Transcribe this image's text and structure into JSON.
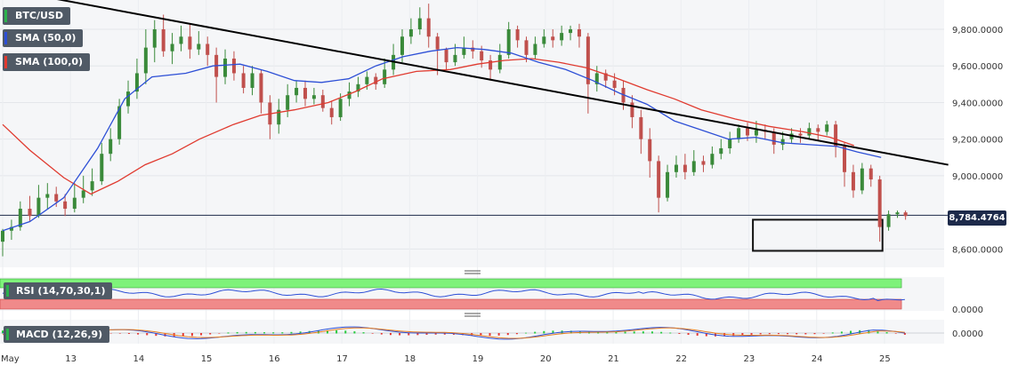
{
  "chart_data": {
    "type": "candlestick",
    "symbol": "BTC/USD",
    "indicators": {
      "sma_fast": {
        "label": "SMA (50,0)",
        "color": "#2d4fd6"
      },
      "sma_slow": {
        "label": "SMA (100,0)",
        "color": "#e03a2f"
      },
      "rsi": {
        "label": "RSI (14,70,30,1)",
        "overbought_color": "#7ef27a",
        "oversold_color": "#f08a8a",
        "line_color": "#2d4fd6"
      },
      "macd": {
        "label": "MACD (12,26,9)",
        "zero_label": "0.0000"
      }
    },
    "current_price": "8,784.4764",
    "rsi_axis_label": "0.0000",
    "yaxis": {
      "ticks": [
        {
          "value": 9800,
          "label": "9,800.0000"
        },
        {
          "value": 9600,
          "label": "9,600.0000"
        },
        {
          "value": 9400,
          "label": "9,400.0000"
        },
        {
          "value": 9200,
          "label": "9,200.0000"
        },
        {
          "value": 9000,
          "label": "9,000.0000"
        },
        {
          "value": 8600,
          "label": "8,600.0000"
        }
      ],
      "ylim": [
        8500,
        9960
      ]
    },
    "xaxis": {
      "ticks": [
        "May",
        "13",
        "14",
        "15",
        "16",
        "17",
        "18",
        "19",
        "20",
        "21",
        "22",
        "23",
        "24",
        "25"
      ]
    },
    "trendline": {
      "start": [
        0,
        10020
      ],
      "end": [
        13.94,
        9060
      ]
    },
    "support_zone": {
      "x_start": 11.06,
      "x_end": 12.97,
      "y_low": 8590,
      "y_high": 8760
    },
    "sma_fast_series": [
      [
        0,
        8700
      ],
      [
        0.4,
        8750
      ],
      [
        0.9,
        8880
      ],
      [
        1.4,
        9150
      ],
      [
        1.8,
        9420
      ],
      [
        2.2,
        9540
      ],
      [
        2.7,
        9560
      ],
      [
        3.1,
        9600
      ],
      [
        3.5,
        9610
      ],
      [
        3.9,
        9570
      ],
      [
        4.3,
        9520
      ],
      [
        4.7,
        9510
      ],
      [
        5.1,
        9530
      ],
      [
        5.5,
        9600
      ],
      [
        5.9,
        9650
      ],
      [
        6.3,
        9680
      ],
      [
        6.7,
        9700
      ],
      [
        7.1,
        9690
      ],
      [
        7.5,
        9670
      ],
      [
        7.9,
        9620
      ],
      [
        8.3,
        9580
      ],
      [
        8.7,
        9520
      ],
      [
        9.1,
        9450
      ],
      [
        9.5,
        9390
      ],
      [
        9.9,
        9300
      ],
      [
        10.3,
        9250
      ],
      [
        10.7,
        9200
      ],
      [
        11.1,
        9210
      ],
      [
        11.5,
        9180
      ],
      [
        11.9,
        9170
      ],
      [
        12.3,
        9160
      ],
      [
        12.6,
        9130
      ],
      [
        12.95,
        9100
      ]
    ],
    "sma_slow_series": [
      [
        0,
        9280
      ],
      [
        0.4,
        9140
      ],
      [
        0.9,
        8990
      ],
      [
        1.3,
        8900
      ],
      [
        1.7,
        8970
      ],
      [
        2.1,
        9060
      ],
      [
        2.5,
        9120
      ],
      [
        2.9,
        9200
      ],
      [
        3.4,
        9280
      ],
      [
        3.8,
        9330
      ],
      [
        4.3,
        9360
      ],
      [
        4.8,
        9400
      ],
      [
        5.2,
        9460
      ],
      [
        5.6,
        9530
      ],
      [
        6.1,
        9570
      ],
      [
        6.6,
        9580
      ],
      [
        7.0,
        9610
      ],
      [
        7.4,
        9630
      ],
      [
        7.8,
        9640
      ],
      [
        8.2,
        9620
      ],
      [
        8.6,
        9590
      ],
      [
        9.0,
        9540
      ],
      [
        9.5,
        9470
      ],
      [
        9.9,
        9420
      ],
      [
        10.3,
        9360
      ],
      [
        10.8,
        9310
      ],
      [
        11.3,
        9270
      ],
      [
        11.8,
        9240
      ],
      [
        12.2,
        9210
      ],
      [
        12.55,
        9165
      ]
    ],
    "candles": [
      [
        0.0,
        8640,
        8700,
        8560,
        8710
      ],
      [
        0.13,
        8700,
        8720,
        8650,
        8760
      ],
      [
        0.26,
        8720,
        8820,
        8700,
        8860
      ],
      [
        0.4,
        8820,
        8780,
        8750,
        8890
      ],
      [
        0.53,
        8780,
        8880,
        8770,
        8950
      ],
      [
        0.66,
        8880,
        8900,
        8820,
        8960
      ],
      [
        0.79,
        8900,
        8860,
        8830,
        8940
      ],
      [
        0.92,
        8860,
        8820,
        8780,
        8900
      ],
      [
        1.06,
        8820,
        8880,
        8800,
        8960
      ],
      [
        1.19,
        8880,
        8920,
        8850,
        9000
      ],
      [
        1.32,
        8920,
        8970,
        8890,
        9040
      ],
      [
        1.46,
        8970,
        9120,
        8950,
        9180
      ],
      [
        1.59,
        9120,
        9200,
        9080,
        9260
      ],
      [
        1.72,
        9200,
        9380,
        9170,
        9420
      ],
      [
        1.85,
        9380,
        9460,
        9340,
        9520
      ],
      [
        1.98,
        9460,
        9560,
        9420,
        9640
      ],
      [
        2.11,
        9560,
        9700,
        9500,
        9800
      ],
      [
        2.24,
        9700,
        9800,
        9620,
        9850
      ],
      [
        2.37,
        9800,
        9680,
        9650,
        9880
      ],
      [
        2.5,
        9680,
        9720,
        9610,
        9780
      ],
      [
        2.63,
        9720,
        9760,
        9680,
        9820
      ],
      [
        2.76,
        9760,
        9690,
        9640,
        9830
      ],
      [
        2.89,
        9690,
        9720,
        9660,
        9790
      ],
      [
        3.02,
        9720,
        9660,
        9600,
        9760
      ],
      [
        3.15,
        9660,
        9540,
        9400,
        9700
      ],
      [
        3.28,
        9540,
        9640,
        9500,
        9690
      ],
      [
        3.41,
        9640,
        9560,
        9520,
        9680
      ],
      [
        3.55,
        9560,
        9480,
        9450,
        9600
      ],
      [
        3.68,
        9480,
        9560,
        9440,
        9600
      ],
      [
        3.81,
        9560,
        9400,
        9340,
        9580
      ],
      [
        3.94,
        9400,
        9280,
        9200,
        9440
      ],
      [
        4.07,
        9280,
        9360,
        9230,
        9420
      ],
      [
        4.2,
        9360,
        9440,
        9320,
        9500
      ],
      [
        4.33,
        9440,
        9480,
        9400,
        9520
      ],
      [
        4.46,
        9480,
        9420,
        9380,
        9520
      ],
      [
        4.59,
        9420,
        9440,
        9390,
        9480
      ],
      [
        4.72,
        9440,
        9370,
        9350,
        9470
      ],
      [
        4.85,
        9370,
        9320,
        9280,
        9410
      ],
      [
        4.98,
        9320,
        9420,
        9300,
        9450
      ],
      [
        5.11,
        9420,
        9460,
        9380,
        9510
      ],
      [
        5.24,
        9460,
        9500,
        9430,
        9540
      ],
      [
        5.37,
        9500,
        9540,
        9470,
        9570
      ],
      [
        5.5,
        9540,
        9500,
        9470,
        9560
      ],
      [
        5.63,
        9500,
        9580,
        9480,
        9640
      ],
      [
        5.76,
        9580,
        9660,
        9550,
        9720
      ],
      [
        5.89,
        9660,
        9760,
        9620,
        9800
      ],
      [
        6.02,
        9760,
        9800,
        9720,
        9860
      ],
      [
        6.15,
        9800,
        9860,
        9770,
        9920
      ],
      [
        6.28,
        9860,
        9760,
        9700,
        9940
      ],
      [
        6.41,
        9760,
        9690,
        9550,
        9780
      ],
      [
        6.54,
        9690,
        9620,
        9580,
        9700
      ],
      [
        6.67,
        9620,
        9660,
        9600,
        9720
      ],
      [
        6.8,
        9660,
        9700,
        9640,
        9760
      ],
      [
        6.93,
        9700,
        9680,
        9640,
        9740
      ],
      [
        7.06,
        9680,
        9630,
        9590,
        9710
      ],
      [
        7.19,
        9630,
        9580,
        9520,
        9660
      ],
      [
        7.33,
        9580,
        9660,
        9560,
        9720
      ],
      [
        7.46,
        9660,
        9800,
        9640,
        9840
      ],
      [
        7.59,
        9800,
        9740,
        9700,
        9820
      ],
      [
        7.72,
        9740,
        9660,
        9620,
        9760
      ],
      [
        7.85,
        9660,
        9720,
        9640,
        9760
      ],
      [
        7.98,
        9720,
        9760,
        9700,
        9800
      ],
      [
        8.11,
        9760,
        9740,
        9700,
        9800
      ],
      [
        8.24,
        9740,
        9780,
        9710,
        9820
      ],
      [
        8.37,
        9780,
        9800,
        9740,
        9820
      ],
      [
        8.5,
        9800,
        9760,
        9700,
        9830
      ],
      [
        8.63,
        9760,
        9500,
        9340,
        9780
      ],
      [
        8.76,
        9500,
        9560,
        9460,
        9600
      ],
      [
        8.89,
        9560,
        9520,
        9480,
        9580
      ],
      [
        9.02,
        9520,
        9480,
        9440,
        9560
      ],
      [
        9.15,
        9480,
        9400,
        9360,
        9520
      ],
      [
        9.28,
        9400,
        9320,
        9260,
        9440
      ],
      [
        9.41,
        9320,
        9200,
        9120,
        9360
      ],
      [
        9.54,
        9200,
        9080,
        8990,
        9260
      ],
      [
        9.67,
        9080,
        8880,
        8800,
        9110
      ],
      [
        9.8,
        8880,
        9020,
        8860,
        9060
      ],
      [
        9.93,
        9020,
        9060,
        8990,
        9110
      ],
      [
        10.06,
        9060,
        9020,
        8980,
        9120
      ],
      [
        10.19,
        9020,
        9080,
        9000,
        9140
      ],
      [
        10.33,
        9080,
        9060,
        9020,
        9110
      ],
      [
        10.46,
        9060,
        9120,
        9040,
        9160
      ],
      [
        10.59,
        9120,
        9150,
        9090,
        9200
      ],
      [
        10.72,
        9150,
        9200,
        9120,
        9240
      ],
      [
        10.85,
        9200,
        9260,
        9180,
        9280
      ],
      [
        10.98,
        9260,
        9220,
        9190,
        9290
      ],
      [
        11.11,
        9220,
        9250,
        9180,
        9300
      ],
      [
        11.24,
        9250,
        9240,
        9200,
        9280
      ],
      [
        11.37,
        9240,
        9170,
        9120,
        9260
      ],
      [
        11.5,
        9170,
        9200,
        9140,
        9240
      ],
      [
        11.63,
        9200,
        9230,
        9180,
        9260
      ],
      [
        11.76,
        9230,
        9220,
        9180,
        9260
      ],
      [
        11.89,
        9220,
        9260,
        9200,
        9290
      ],
      [
        12.02,
        9260,
        9240,
        9190,
        9280
      ],
      [
        12.15,
        9240,
        9280,
        9220,
        9300
      ],
      [
        12.28,
        9280,
        9160,
        9100,
        9300
      ],
      [
        12.41,
        9160,
        9020,
        8940,
        9180
      ],
      [
        12.54,
        9020,
        8920,
        8880,
        9060
      ],
      [
        12.67,
        8920,
        9040,
        8900,
        9070
      ],
      [
        12.8,
        9040,
        8980,
        8940,
        9060
      ],
      [
        12.93,
        8980,
        8720,
        8640,
        9000
      ],
      [
        13.06,
        8720,
        8790,
        8700,
        8810
      ],
      [
        13.19,
        8790,
        8800,
        8770,
        8810
      ],
      [
        13.31,
        8800,
        8780,
        8760,
        8810
      ]
    ]
  }
}
